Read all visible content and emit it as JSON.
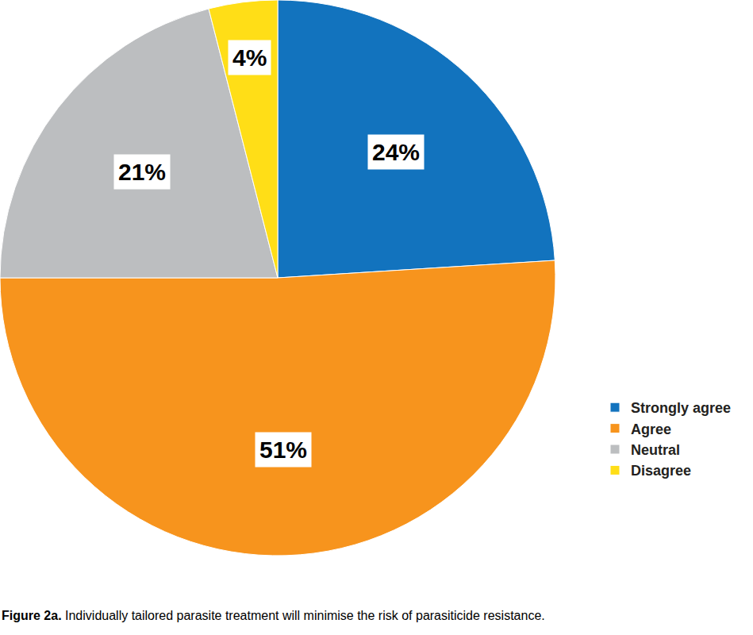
{
  "chart_data": {
    "type": "pie",
    "title": "Figure 2a. Individually tailored parasite treatment will minimise the risk of parasiticide resistance.",
    "categories": [
      "Strongly agree",
      "Agree",
      "Neutral",
      "Disagree"
    ],
    "values": [
      24,
      51,
      21,
      4
    ],
    "value_labels": [
      "24%",
      "51%",
      "21%",
      "4%"
    ],
    "colors": [
      "#1273be",
      "#f7941d",
      "#bcbec0",
      "#ffde17"
    ],
    "data_labels": true,
    "legend": "lower right"
  }
}
